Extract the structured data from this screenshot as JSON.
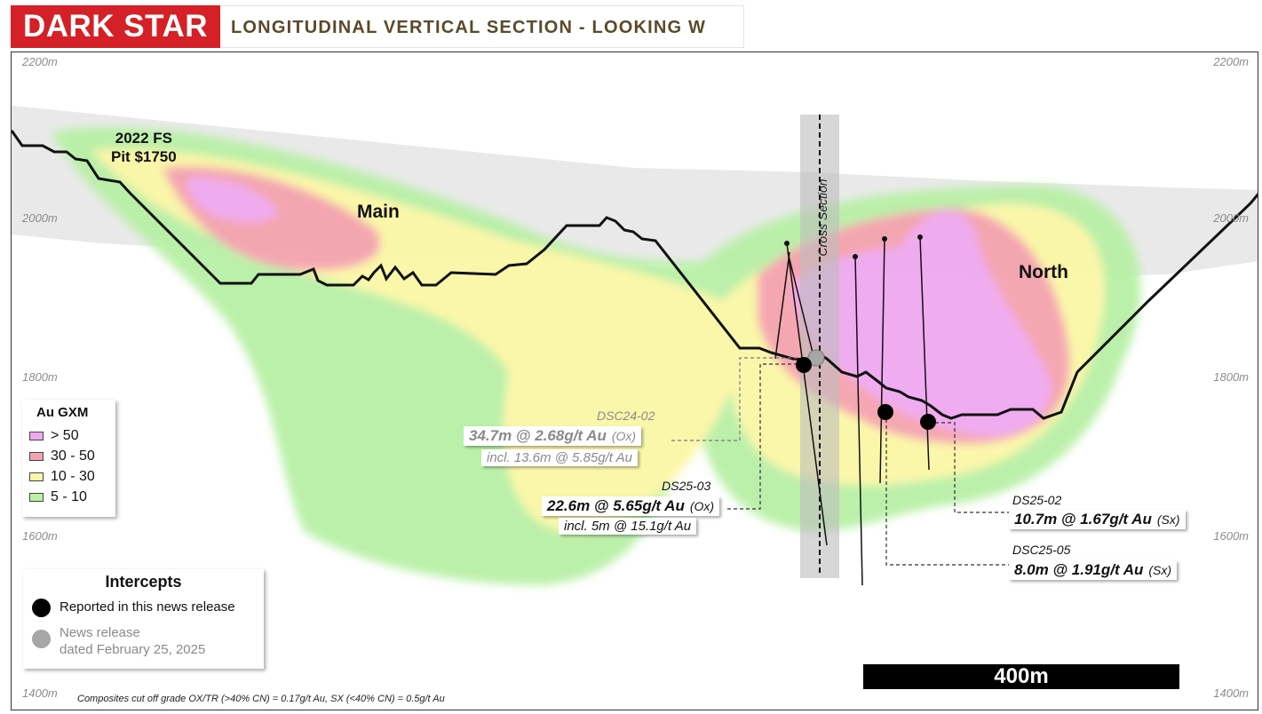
{
  "header": {
    "logo_text": "DARK STAR",
    "title": "LONGITUDINAL VERTICAL SECTION - LOOKING W"
  },
  "elevations": {
    "left": [
      "2200m",
      "2000m",
      "1800m",
      "1600m",
      "1400m"
    ],
    "right": [
      "2200m",
      "2000m",
      "1800m",
      "1600m",
      "1400m"
    ]
  },
  "labels": {
    "pit_line1": "2022 FS",
    "pit_line2": "Pit $1750",
    "main": "Main",
    "north": "North",
    "cross_section": "Cross Section"
  },
  "intercepts": [
    {
      "hole": "DSC24-02",
      "result": "34.7m @ 2.68g/t Au",
      "type": "(Ox)",
      "incl": "incl. 13.6m @ 5.85g/t Au",
      "status": "previous"
    },
    {
      "hole": "DS25-03",
      "result": "22.6m @ 5.65g/t Au",
      "type": "(Ox)",
      "incl": "incl. 5m @ 15.1g/t Au",
      "status": "reported"
    },
    {
      "hole": "DS25-02",
      "result": "10.7m @ 1.67g/t Au",
      "type": "(Sx)",
      "status": "reported"
    },
    {
      "hole": "DSC25-05",
      "result": "8.0m @ 1.91g/t Au",
      "type": "(Sx)",
      "status": "reported"
    }
  ],
  "legend": {
    "title": "Au GXM",
    "items": [
      {
        "label": "> 50",
        "color": "#f0a8f0"
      },
      {
        "label": "30 - 50",
        "color": "#f5a3ad"
      },
      {
        "label": "10 - 30",
        "color": "#fbf7a6"
      },
      {
        "label": "5 - 10",
        "color": "#b8f0a6"
      }
    ]
  },
  "intercepts_legend": {
    "title": "Intercepts",
    "reported": "Reported in this news release",
    "previous_line1": "News release",
    "previous_line2": "dated February 25, 2025",
    "reported_color": "#000000",
    "previous_color": "#a6a6a6"
  },
  "scale_bar": "400m",
  "footnote": "Composites cut off grade  OX/TR (>40% CN) = 0.17g/t Au, SX (<40% CN) = 0.5g/t Au"
}
